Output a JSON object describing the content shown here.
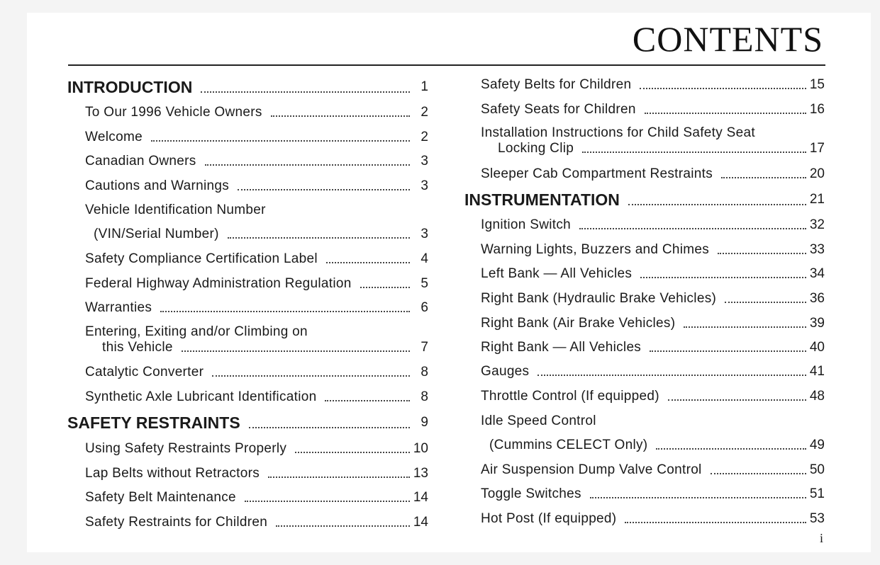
{
  "title": "CONTENTS",
  "folio": "i",
  "left": [
    {
      "label": "INTRODUCTION",
      "page": "1",
      "heading": true
    },
    {
      "label": "To Our 1996 Vehicle Owners",
      "page": "2"
    },
    {
      "label": "Welcome",
      "page": "2"
    },
    {
      "label": "Canadian Owners",
      "page": "3"
    },
    {
      "label": "Cautions and Warnings",
      "page": "3"
    },
    {
      "label": "Vehicle Identification Number",
      "page": ""
    },
    {
      "label": "(VIN/Serial Number)",
      "page": "3"
    },
    {
      "label": "Safety Compliance Certification Label",
      "page": "4"
    },
    {
      "label": "Federal Highway Administration Regulation",
      "page": "5"
    },
    {
      "label": "Warranties",
      "page": "6"
    },
    {
      "label": "Entering, Exiting and/or Climbing on",
      "label2": "this Vehicle",
      "page": "7"
    },
    {
      "label": "Catalytic Converter",
      "page": "8"
    },
    {
      "label": "Synthetic Axle Lubricant Identification",
      "page": "8"
    },
    {
      "label": "SAFETY RESTRAINTS",
      "page": "9",
      "heading": true
    },
    {
      "label": "Using Safety Restraints Properly",
      "page": "10"
    },
    {
      "label": "Lap Belts without Retractors",
      "page": "13"
    },
    {
      "label": "Safety Belt Maintenance",
      "page": "14"
    },
    {
      "label": "Safety Restraints for Children",
      "page": "14"
    }
  ],
  "right": [
    {
      "label": "Safety Belts for Children",
      "page": "15"
    },
    {
      "label": "Safety Seats for Children",
      "page": "16"
    },
    {
      "label": "Installation Instructions for Child Safety Seat",
      "label2": "Locking Clip",
      "page": "17"
    },
    {
      "label": "Sleeper Cab Compartment Restraints",
      "page": "20"
    },
    {
      "label": "INSTRUMENTATION",
      "page": "21",
      "heading": true
    },
    {
      "label": "Ignition Switch",
      "page": "32"
    },
    {
      "label": "Warning Lights, Buzzers and Chimes",
      "page": "33"
    },
    {
      "label": "Left Bank — All Vehicles",
      "page": "34"
    },
    {
      "label": "Right Bank (Hydraulic Brake Vehicles)",
      "page": "36"
    },
    {
      "label": "Right Bank (Air Brake Vehicles)",
      "page": "39"
    },
    {
      "label": "Right Bank — All Vehicles",
      "page": "40"
    },
    {
      "label": "Gauges",
      "page": "41"
    },
    {
      "label": "Throttle Control (If equipped)",
      "page": "48"
    },
    {
      "label": "Idle Speed Control",
      "page": ""
    },
    {
      "label": "(Cummins CELECT Only)",
      "page": "49"
    },
    {
      "label": "Air Suspension Dump Valve Control",
      "page": "50"
    },
    {
      "label": "Toggle Switches",
      "page": "51"
    },
    {
      "label": "Hot Post (If equipped)",
      "page": "53"
    }
  ]
}
